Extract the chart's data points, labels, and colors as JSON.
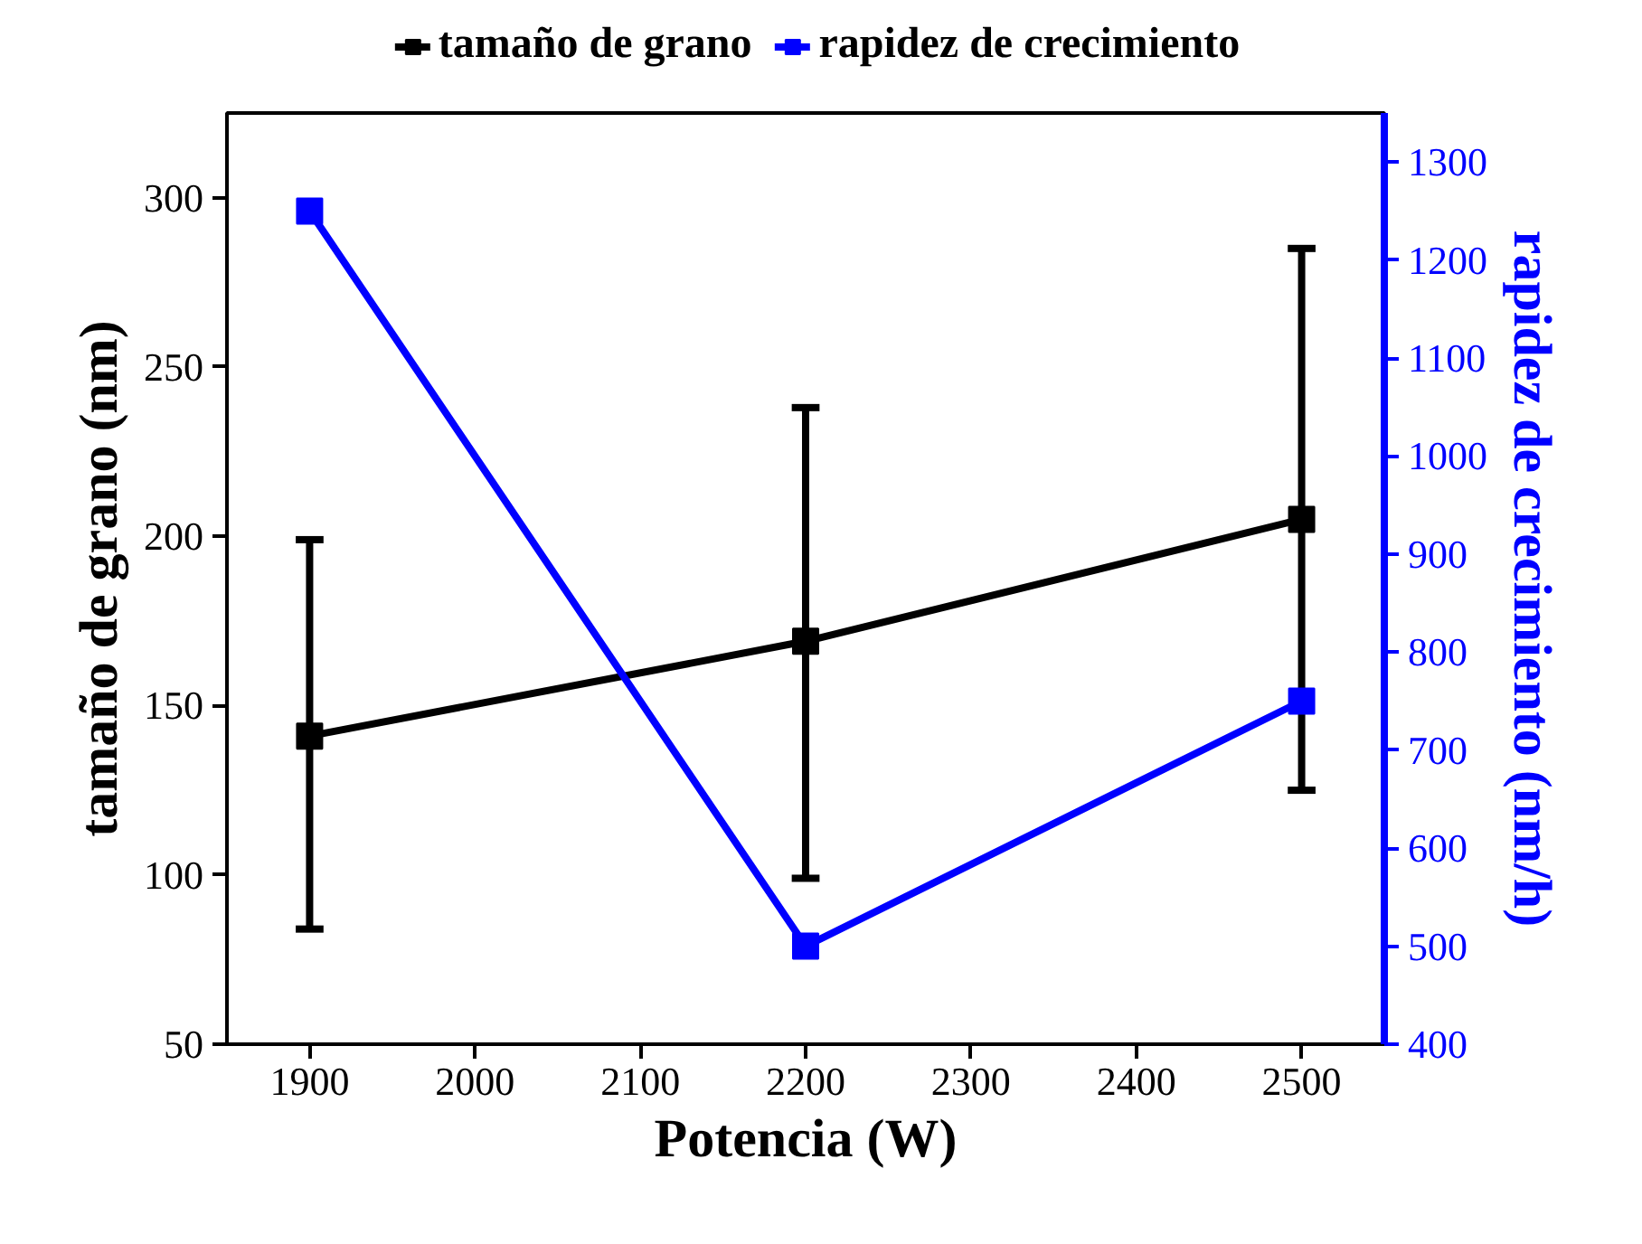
{
  "chart_data": {
    "type": "line",
    "xlabel": "Potencia (W)",
    "ylabel": "tamaño de grano (nm)",
    "y2label": "rapidez de crecimiento (nm/h)",
    "x": [
      1900,
      2200,
      2500
    ],
    "series": [
      {
        "name": "tamaño de grano",
        "color": "#000000",
        "values": [
          141,
          169,
          205
        ],
        "errors": [
          [
            84,
            199
          ],
          [
            99,
            238
          ],
          [
            125,
            285
          ]
        ]
      },
      {
        "name": "rapidez de crecimiento",
        "color": "#0000ff",
        "values": [
          1250,
          500,
          750
        ],
        "axis": "y2"
      }
    ],
    "xlim": [
      1850,
      2550
    ],
    "xticks": [
      1900,
      2000,
      2100,
      2200,
      2300,
      2400,
      2500
    ],
    "ylim": [
      50,
      325
    ],
    "yticks": [
      50,
      100,
      150,
      200,
      250,
      300
    ],
    "y2lim": [
      400,
      1350
    ],
    "y2ticks": [
      400,
      500,
      600,
      700,
      800,
      900,
      1000,
      1100,
      1200,
      1300
    ],
    "marker": "square",
    "line_style": "solid",
    "legend": "top",
    "grid": false
  }
}
